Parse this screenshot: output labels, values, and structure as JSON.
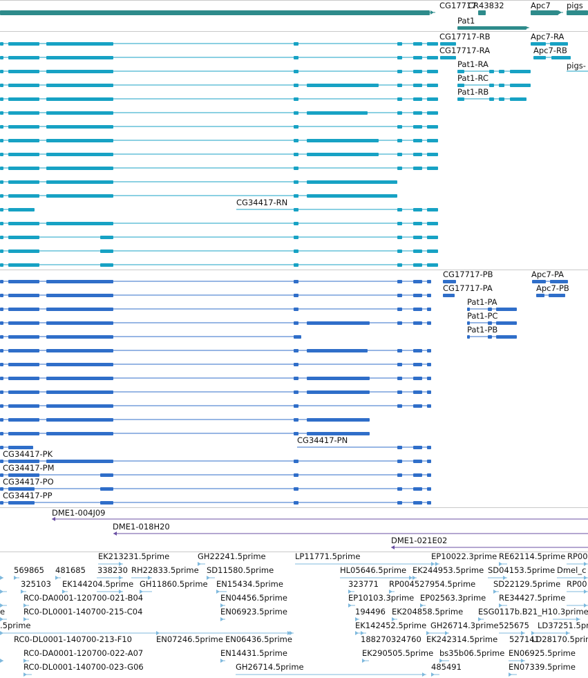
{
  "palette": {
    "gene": "#2e8b8b",
    "mrna": "#17a2c4",
    "protein": "#2f6ec9",
    "clone": "#6a4fa3",
    "est": "#7fb9dd",
    "separator": "#c9c9c9"
  },
  "tracks": [
    {
      "id": "gene",
      "color": "gene",
      "items": [
        {
          "label": "CG17717",
          "interactable": true
        },
        {
          "label": "CR43832",
          "interactable": true
        },
        {
          "label": "Apc7",
          "interactable": true
        },
        {
          "label": "pigs",
          "interactable": true
        },
        {
          "label": "Pat1",
          "interactable": true
        },
        {
          "label": "",
          "interactable": true
        }
      ]
    },
    {
      "id": "mrna",
      "color": "mrna",
      "items": [
        {
          "label": "CG17717-RB"
        },
        {
          "label": "Apc7-RA"
        },
        {
          "label": "CG17717-RA"
        },
        {
          "label": "Apc7-RB"
        },
        {
          "label": "Pat1-RA"
        },
        {
          "label": "pigs-"
        },
        {
          "label": "Pat1-RC"
        },
        {
          "label": "Pat1-RB"
        },
        {
          "label": "CG34417-RN"
        }
      ]
    },
    {
      "id": "protein",
      "color": "protein",
      "items": [
        {
          "label": "CG17717-PB"
        },
        {
          "label": "Apc7-PA"
        },
        {
          "label": "CG17717-PA"
        },
        {
          "label": "Apc7-PB"
        },
        {
          "label": "Pat1-PA"
        },
        {
          "label": "Pat1-PC"
        },
        {
          "label": "Pat1-PB"
        },
        {
          "label": "CG34417-PN"
        },
        {
          "label": "CG34417-PK"
        },
        {
          "label": "CG34417-PM"
        },
        {
          "label": "CG34417-PO"
        },
        {
          "label": "CG34417-PP"
        }
      ]
    },
    {
      "id": "clone",
      "color": "clone",
      "items": [
        {
          "label": "DME1-004J09"
        },
        {
          "label": "DME1-018H20"
        },
        {
          "label": "DME1-021E02"
        }
      ]
    },
    {
      "id": "est",
      "color": "est",
      "labels": [
        "EK213231.5prime",
        "GH22241.5prime",
        "LP11771.5prime",
        "EP10022.3prime",
        "RE62114.5prime",
        "RP00",
        "569865",
        "481685",
        "338230",
        "RH22833.5prime",
        "SD11580.5prime",
        "HL05646.5prime",
        "EK244953.5prime",
        "SD04153.5prime",
        "Dmel_c",
        "325103",
        "EK144204.5prime",
        "GH11860.5prime",
        "EN15434.5prime",
        "323771",
        "RP004527954.5prime",
        "SD22129.5prime",
        "RP00",
        "RC0-DA0001-120700-021-B04",
        "EN04456.5prime",
        "EP10103.3prime",
        "EP02563.3prime",
        "RE34427.5prime",
        "e",
        "RC0-DL0001-140700-215-C04",
        "EN06923.5prime",
        "194496",
        "EK204858.5prime",
        "ESG0117b.B21_H10.3prime",
        ".5prime",
        "EK142452.5prime",
        "GH26714.3prime",
        "525675",
        "LD37251.5prime",
        "RC0-DL0001-140700-213-F10",
        "EN07246.5prime",
        "EN06436.5prime",
        "188270324760",
        "EK242314.5prime",
        "527141",
        "LD28170.5prime",
        "RC0-DA0001-120700-022-A07",
        "EN14431.5prime",
        "EK290505.5prime",
        "bs35b06.5prime",
        "EN06925.5prime",
        "RC0-DL0001-140700-023-G06",
        "GH26714.5prime",
        "485491",
        "EN07339.5prime"
      ]
    }
  ]
}
